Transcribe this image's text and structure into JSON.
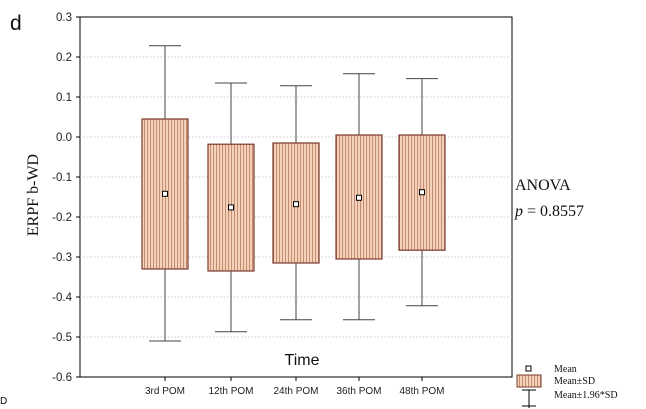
{
  "panel_label": "d",
  "edge_fragment": "D",
  "annotation": {
    "line1": "ANOVA",
    "p_label": "p",
    "p_value": " = 0.8557"
  },
  "legend": {
    "mean": "Mean",
    "sd": "Mean±SD",
    "ci": "Mean±1.96*SD"
  },
  "chart_data": {
    "type": "box",
    "xlabel": "Time",
    "ylabel": "ERPF b-WD",
    "ylim": [
      -0.6,
      0.3
    ],
    "yticks": [
      0.3,
      0.2,
      0.1,
      0.0,
      -0.1,
      -0.2,
      -0.3,
      -0.4,
      -0.5,
      -0.6
    ],
    "ytick_labels": [
      "0.3",
      "0.2",
      "0.1",
      "0.0",
      "-0.1",
      "-0.2",
      "-0.3",
      "-0.4",
      "-0.5",
      "-0.6"
    ],
    "grid": true,
    "categories": [
      "3rd POM",
      "12th POM",
      "24th POM",
      "36th POM",
      "48th POM"
    ],
    "mean": [
      -0.142,
      -0.176,
      -0.168,
      -0.152,
      -0.138
    ],
    "sd_low": [
      -0.33,
      -0.335,
      -0.315,
      -0.305,
      -0.283
    ],
    "sd_high": [
      0.045,
      -0.018,
      -0.015,
      0.005,
      0.005
    ],
    "whisker_low": [
      -0.51,
      -0.487,
      -0.457,
      -0.457,
      -0.422
    ],
    "whisker_high": [
      0.228,
      0.135,
      0.128,
      0.158,
      0.146
    ],
    "box_fill": "#f4d3bd",
    "box_stripe": "#c08060",
    "box_edge": "#7a3b2e"
  }
}
